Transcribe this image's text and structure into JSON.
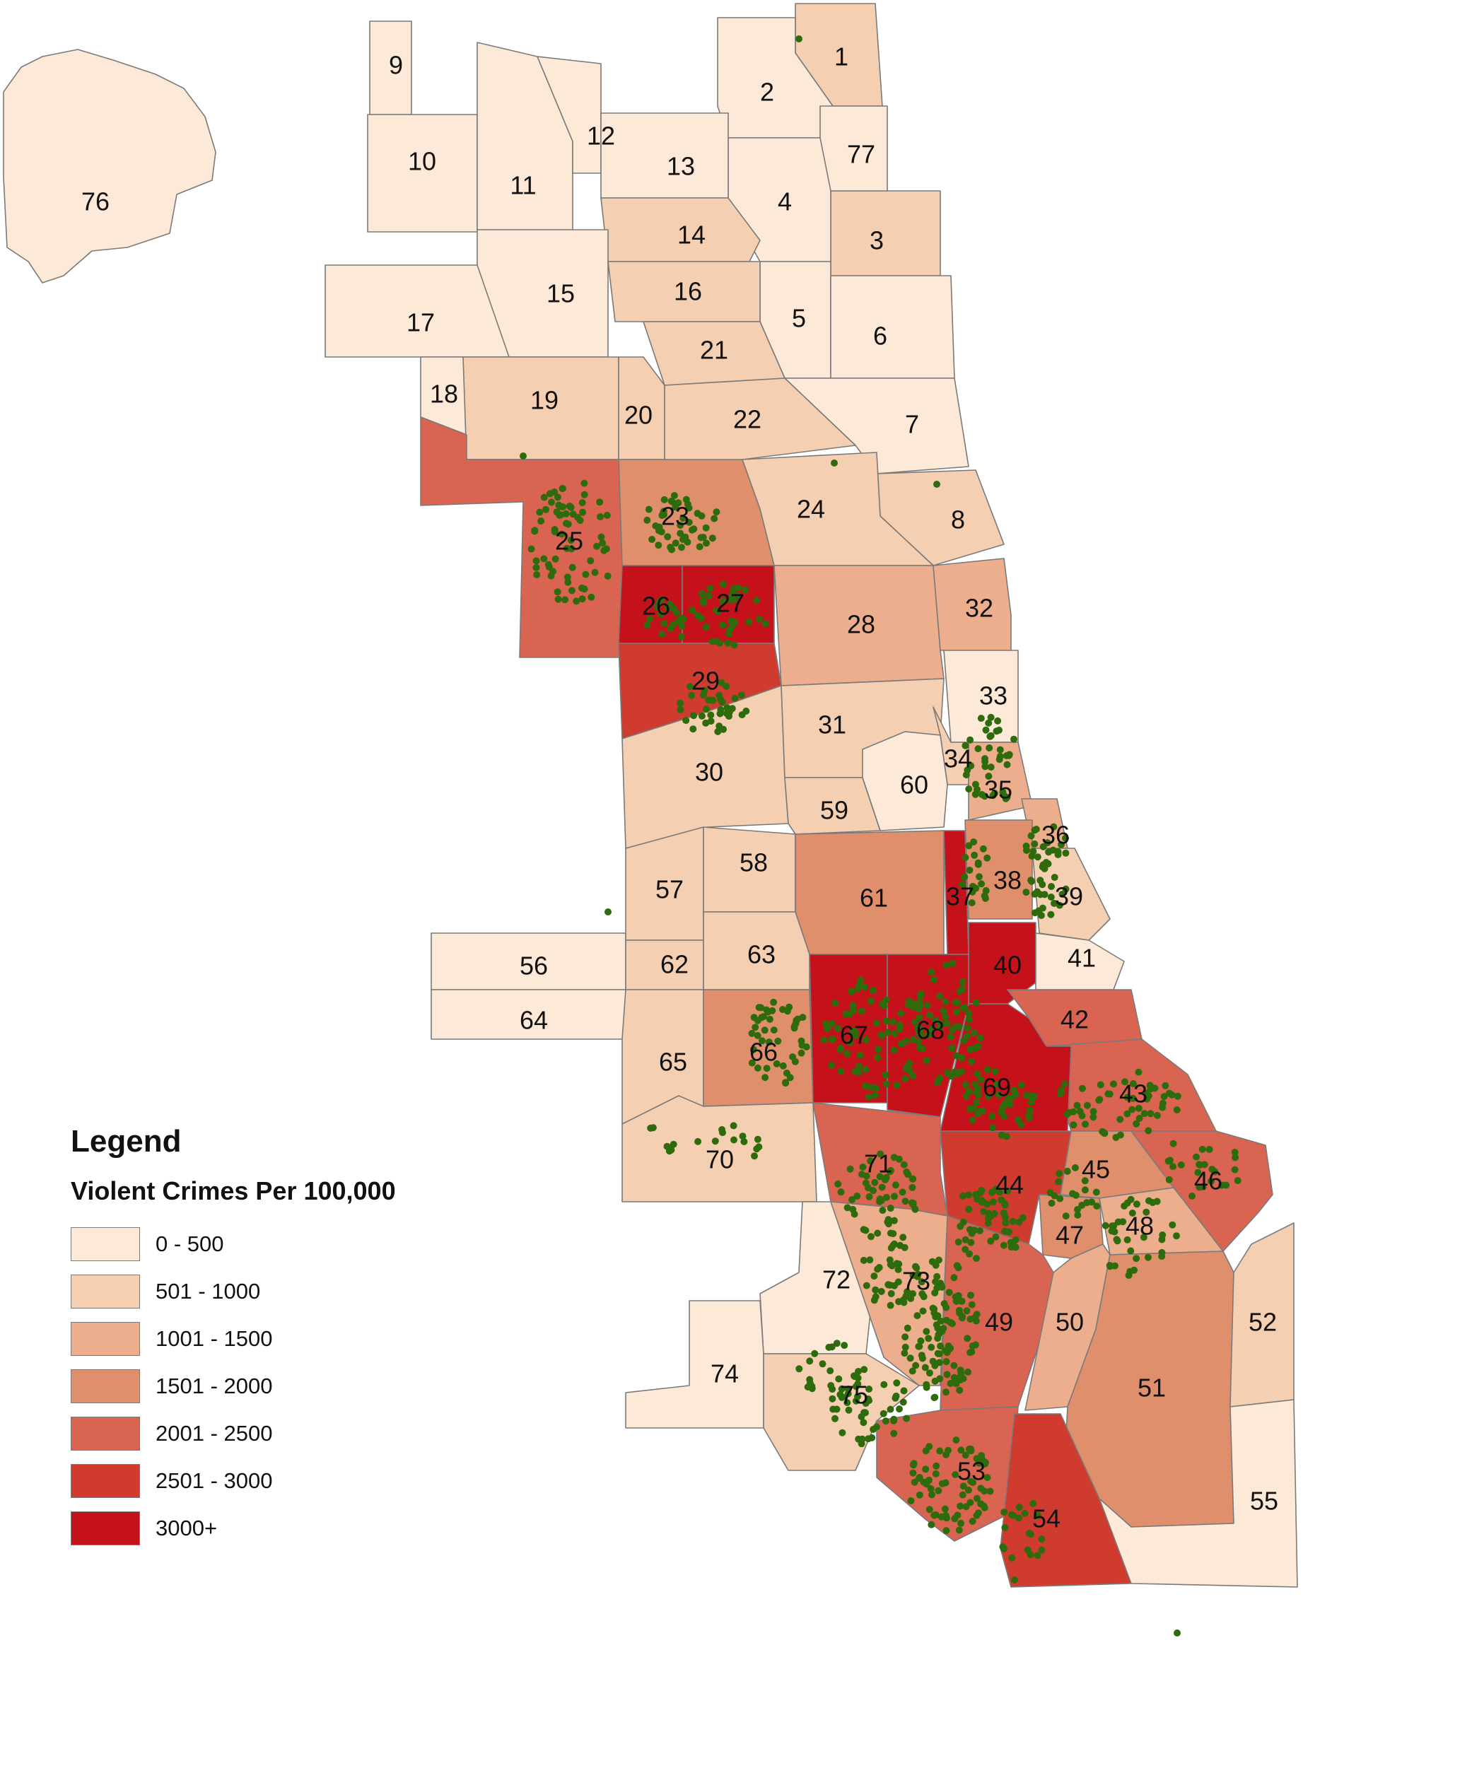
{
  "legend": {
    "title": "Legend",
    "subtitle": "Violent Crimes Per 100,000",
    "classes": [
      {
        "label": "0 - 500",
        "color": "#fde9d7"
      },
      {
        "label": "501 - 1000",
        "color": "#f5cfb1"
      },
      {
        "label": "1001 - 1500",
        "color": "#ecae8c"
      },
      {
        "label": "1501 - 2000",
        "color": "#e08f6c"
      },
      {
        "label": "2001 - 2500",
        "color": "#d96452"
      },
      {
        "label": "2501 - 3000",
        "color": "#cf3c2f"
      },
      {
        "label": "3000+",
        "color": "#c5121a"
      }
    ]
  },
  "community_areas": [
    {
      "id": "1",
      "class": 1
    },
    {
      "id": "2",
      "class": 0
    },
    {
      "id": "3",
      "class": 1
    },
    {
      "id": "4",
      "class": 0
    },
    {
      "id": "5",
      "class": 0
    },
    {
      "id": "6",
      "class": 0
    },
    {
      "id": "7",
      "class": 0
    },
    {
      "id": "8",
      "class": 1
    },
    {
      "id": "9",
      "class": 0
    },
    {
      "id": "10",
      "class": 0
    },
    {
      "id": "11",
      "class": 0
    },
    {
      "id": "12",
      "class": 0
    },
    {
      "id": "13",
      "class": 0
    },
    {
      "id": "14",
      "class": 1
    },
    {
      "id": "15",
      "class": 0
    },
    {
      "id": "16",
      "class": 1
    },
    {
      "id": "17",
      "class": 0
    },
    {
      "id": "18",
      "class": 0
    },
    {
      "id": "19",
      "class": 1
    },
    {
      "id": "20",
      "class": 1
    },
    {
      "id": "21",
      "class": 1
    },
    {
      "id": "22",
      "class": 1
    },
    {
      "id": "23",
      "class": 3
    },
    {
      "id": "24",
      "class": 1
    },
    {
      "id": "25",
      "class": 4
    },
    {
      "id": "26",
      "class": 6
    },
    {
      "id": "27",
      "class": 6
    },
    {
      "id": "28",
      "class": 2
    },
    {
      "id": "29",
      "class": 5
    },
    {
      "id": "30",
      "class": 1
    },
    {
      "id": "31",
      "class": 1
    },
    {
      "id": "32",
      "class": 2
    },
    {
      "id": "33",
      "class": 0
    },
    {
      "id": "34",
      "class": 1
    },
    {
      "id": "35",
      "class": 2
    },
    {
      "id": "36",
      "class": 2
    },
    {
      "id": "37",
      "class": 6
    },
    {
      "id": "38",
      "class": 3
    },
    {
      "id": "39",
      "class": 1
    },
    {
      "id": "40",
      "class": 6
    },
    {
      "id": "41",
      "class": 0
    },
    {
      "id": "42",
      "class": 4
    },
    {
      "id": "43",
      "class": 4
    },
    {
      "id": "44",
      "class": 5
    },
    {
      "id": "45",
      "class": 3
    },
    {
      "id": "46",
      "class": 4
    },
    {
      "id": "47",
      "class": 3
    },
    {
      "id": "48",
      "class": 2
    },
    {
      "id": "49",
      "class": 4
    },
    {
      "id": "50",
      "class": 2
    },
    {
      "id": "51",
      "class": 3
    },
    {
      "id": "52",
      "class": 1
    },
    {
      "id": "53",
      "class": 4
    },
    {
      "id": "54",
      "class": 5
    },
    {
      "id": "55",
      "class": 0
    },
    {
      "id": "56",
      "class": 0
    },
    {
      "id": "57",
      "class": 1
    },
    {
      "id": "58",
      "class": 1
    },
    {
      "id": "59",
      "class": 1
    },
    {
      "id": "60",
      "class": 0
    },
    {
      "id": "61",
      "class": 3
    },
    {
      "id": "62",
      "class": 1
    },
    {
      "id": "63",
      "class": 1
    },
    {
      "id": "64",
      "class": 0
    },
    {
      "id": "65",
      "class": 1
    },
    {
      "id": "66",
      "class": 3
    },
    {
      "id": "67",
      "class": 6
    },
    {
      "id": "68",
      "class": 6
    },
    {
      "id": "69",
      "class": 6
    },
    {
      "id": "70",
      "class": 1
    },
    {
      "id": "71",
      "class": 4
    },
    {
      "id": "72",
      "class": 0
    },
    {
      "id": "73",
      "class": 2
    },
    {
      "id": "74",
      "class": 0
    },
    {
      "id": "75",
      "class": 1
    },
    {
      "id": "76",
      "class": 0
    },
    {
      "id": "77",
      "class": 0
    }
  ],
  "incident_marker_color": "#2e6b0c"
}
